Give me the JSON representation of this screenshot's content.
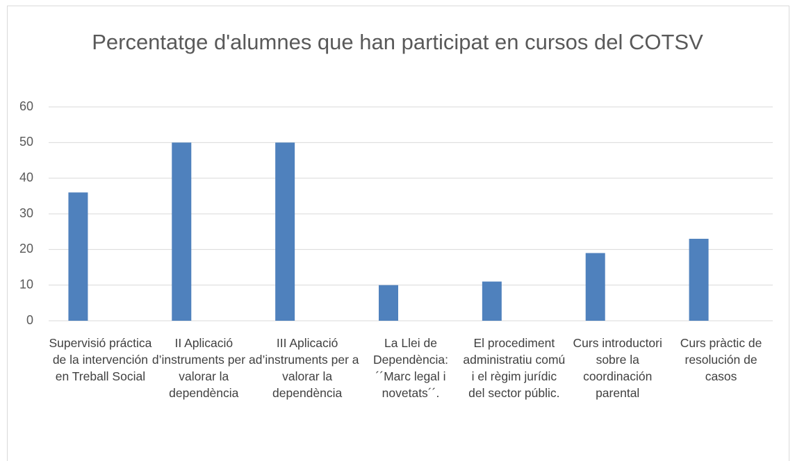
{
  "chart_data": {
    "type": "bar",
    "title": "Percentatge d'alumnes que han participat en cursos del COTSV",
    "categories": [
      "Supervisió práctica de la intervención en Treball Social",
      "II Aplicació d’instruments per a valorar la dependència",
      "III Aplicació d’instruments per a valorar la dependència",
      "La Llei de Dependència: ´´Marc legal i novetats´´.",
      "El procediment administratiu comú i el règim jurídic del sector públic.",
      "Curs introductori sobre la coordinación parental",
      "Curs pràctic de resolución de casos"
    ],
    "values": [
      36,
      50,
      50,
      10,
      11,
      19,
      23
    ],
    "color": "#4f81bd",
    "ylim": [
      0,
      60
    ],
    "yticks": [
      0,
      10,
      20,
      30,
      40,
      50,
      60
    ],
    "grid": true
  }
}
